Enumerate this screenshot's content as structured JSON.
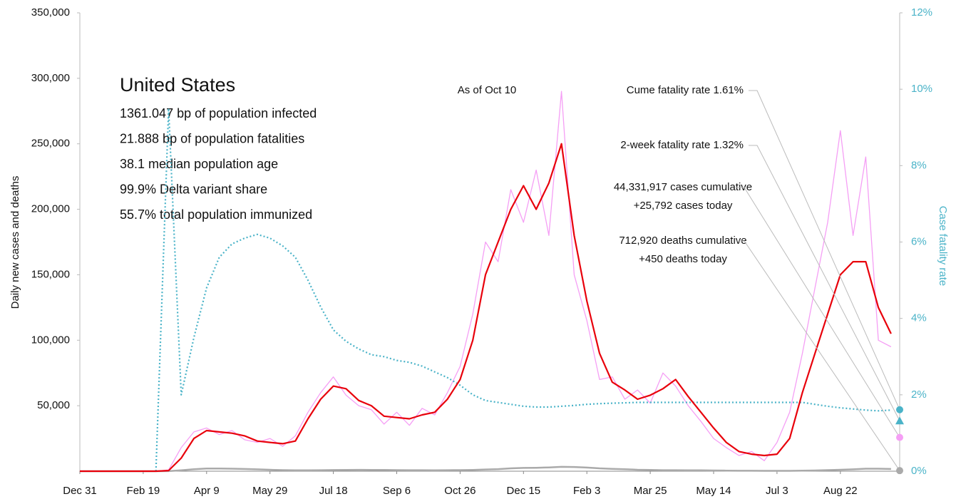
{
  "chart_data": {
    "type": "line",
    "info_title": "United States",
    "info_lines": [
      "1361.047 bp of population infected",
      "21.888 bp of population fatalities",
      "38.1 median population age",
      "99.9% Delta variant share",
      "55.7% total population immunized"
    ],
    "as_of": "As of Oct 10",
    "y_label": "Daily new cases and deaths",
    "y2_label": "Case fatality rate",
    "categories": [
      "Dec 31",
      null,
      null,
      null,
      null,
      "Feb 19",
      null,
      null,
      null,
      null,
      "Apr 9",
      null,
      null,
      null,
      null,
      "May 29",
      null,
      null,
      null,
      null,
      "Jul 18",
      null,
      null,
      null,
      null,
      "Sep 6",
      null,
      null,
      null,
      null,
      "Oct 26",
      null,
      null,
      null,
      null,
      "Dec 15",
      null,
      null,
      null,
      null,
      "Feb 3",
      null,
      null,
      null,
      null,
      "Mar 25",
      null,
      null,
      null,
      null,
      "May 14",
      null,
      null,
      null,
      null,
      "Jul 3",
      null,
      null,
      null,
      null,
      "Aug 22",
      null,
      null,
      null,
      null
    ],
    "ylim": [
      0,
      350000
    ],
    "yticks": [
      {
        "value": 50000,
        "label": "50,000"
      },
      {
        "value": 100000,
        "label": "100,000"
      },
      {
        "value": 150000,
        "label": "150,000"
      },
      {
        "value": 200000,
        "label": "200,000"
      },
      {
        "value": 250000,
        "label": "250,000"
      },
      {
        "value": 300000,
        "label": "300,000"
      },
      {
        "value": 350000,
        "label": "350,000"
      }
    ],
    "y2lim": [
      0,
      12
    ],
    "y2ticks": [
      {
        "value": 0,
        "label": "0%"
      },
      {
        "value": 2,
        "label": "2%"
      },
      {
        "value": 4,
        "label": "4%"
      },
      {
        "value": 6,
        "label": "6%"
      },
      {
        "value": 8,
        "label": "8%"
      },
      {
        "value": 10,
        "label": "10%"
      },
      {
        "value": 12,
        "label": "12%"
      }
    ],
    "grid": false,
    "series": [
      {
        "color": "#f59ff5",
        "width": 1.3,
        "dash": "",
        "values": [
          0,
          0,
          0,
          0,
          0,
          0,
          0,
          1000,
          18000,
          30000,
          33000,
          28000,
          31000,
          24000,
          22000,
          25000,
          19000,
          27000,
          45000,
          60000,
          72000,
          58000,
          50000,
          47000,
          36000,
          45000,
          35000,
          48000,
          43000,
          60000,
          80000,
          120000,
          175000,
          160000,
          215000,
          190000,
          230000,
          180000,
          290000,
          150000,
          115000,
          70000,
          72000,
          55000,
          62000,
          52000,
          75000,
          65000,
          50000,
          38000,
          25000,
          18000,
          12000,
          15000,
          8000,
          22000,
          45000,
          90000,
          140000,
          190000,
          260000,
          180000,
          240000,
          100000,
          95000
        ]
      },
      {
        "color": "#aaaaaa",
        "width": 2.5,
        "dash": "",
        "values": [
          0,
          0,
          0,
          0,
          0,
          0,
          0,
          50,
          700,
          1500,
          2000,
          2000,
          1900,
          1700,
          1400,
          1100,
          800,
          650,
          700,
          750,
          850,
          1000,
          1050,
          1000,
          900,
          800,
          750,
          750,
          700,
          750,
          800,
          1000,
          1300,
          1600,
          2200,
          2500,
          2600,
          2900,
          3300,
          3200,
          2800,
          2200,
          1800,
          1500,
          1100,
          900,
          750,
          750,
          700,
          650,
          550,
          450,
          350,
          300,
          280,
          250,
          280,
          400,
          550,
          800,
          1100,
          1400,
          1900,
          1900,
          1700
        ]
      },
      {
        "color": "#4ab3c8",
        "width": 2.2,
        "dash": "2 3",
        "axis": "y2",
        "values": [
          null,
          null,
          null,
          null,
          null,
          null,
          0,
          9.5,
          2.0,
          3.5,
          4.8,
          5.6,
          5.95,
          6.1,
          6.2,
          6.1,
          5.9,
          5.6,
          5.0,
          4.3,
          3.7,
          3.4,
          3.2,
          3.05,
          3.0,
          2.9,
          2.85,
          2.75,
          2.6,
          2.45,
          2.25,
          2.0,
          1.85,
          1.8,
          1.75,
          1.7,
          1.68,
          1.68,
          1.7,
          1.72,
          1.75,
          1.77,
          1.78,
          1.79,
          1.8,
          1.8,
          1.8,
          1.8,
          1.8,
          1.8,
          1.8,
          1.8,
          1.8,
          1.8,
          1.8,
          1.8,
          1.8,
          1.8,
          1.75,
          1.7,
          1.66,
          1.63,
          1.6,
          1.58,
          1.6
        ]
      },
      {
        "color": "#e8000b",
        "width": 2.2,
        "dash": "",
        "values": [
          0,
          0,
          0,
          0,
          0,
          0,
          0,
          500,
          10000,
          25000,
          31000,
          30000,
          29000,
          27000,
          23000,
          22000,
          21000,
          23000,
          40000,
          55000,
          65000,
          63000,
          54000,
          50000,
          42000,
          41000,
          40000,
          43000,
          45000,
          55000,
          70000,
          100000,
          150000,
          175000,
          200000,
          218000,
          200000,
          220000,
          250000,
          180000,
          130000,
          90000,
          68000,
          62000,
          55000,
          58000,
          63000,
          70000,
          57000,
          45000,
          33000,
          22000,
          15000,
          13000,
          12000,
          13000,
          25000,
          60000,
          90000,
          120000,
          150000,
          160000,
          160000,
          125000,
          105000
        ]
      }
    ],
    "end_markers": [
      {
        "lines": [
          "Cume fatality rate 1.61%"
        ],
        "value": 1.61,
        "axis": "y2",
        "shape": "circle",
        "color": "#4ab3c8"
      },
      {
        "lines": [
          "2-week fatality rate 1.32%"
        ],
        "value": 1.32,
        "axis": "y2",
        "shape": "triangle",
        "color": "#4ab3c8"
      },
      {
        "lines": [
          "44,331,917 cases cumulative",
          "+25,792 cases today"
        ],
        "value": 25792,
        "shape": "circle",
        "color": "#f59ff5"
      },
      {
        "lines": [
          "712,920 deaths cumulative",
          "+450 deaths today"
        ],
        "value": 450,
        "shape": "circle",
        "color": "#aaaaaa"
      }
    ]
  }
}
